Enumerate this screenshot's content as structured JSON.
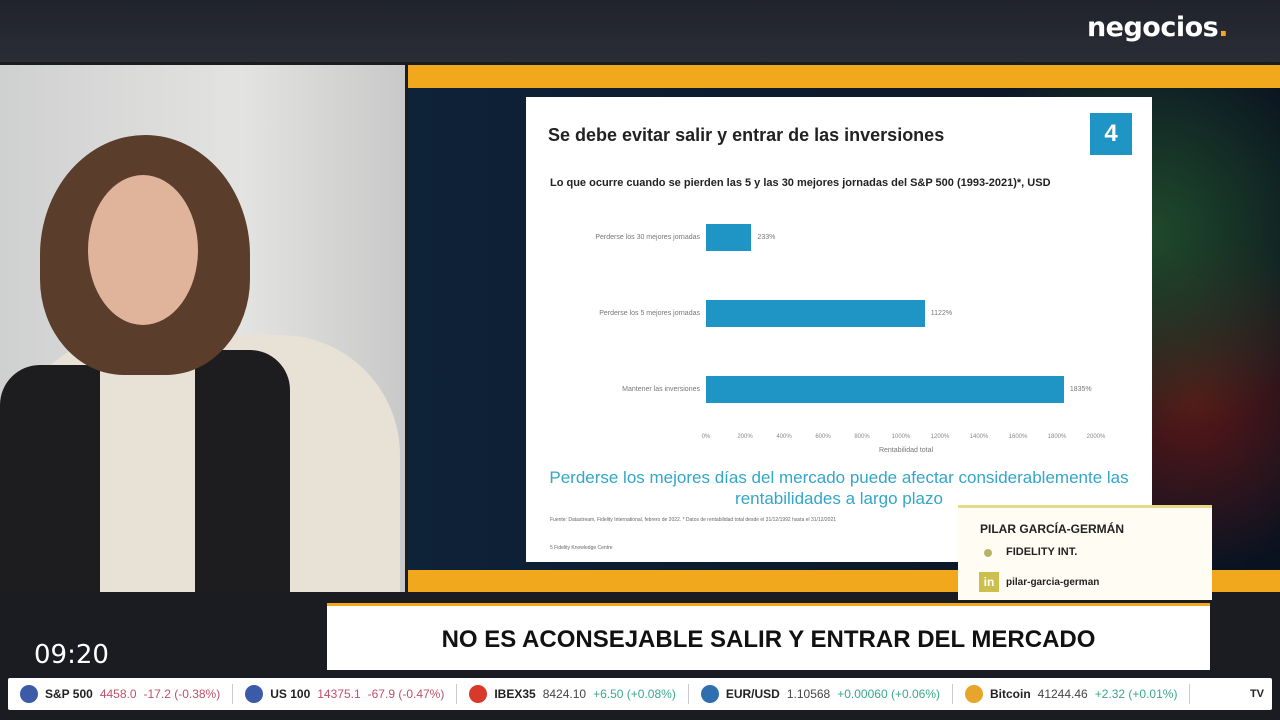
{
  "brand": {
    "logo": "negocios",
    "logo_dot": "."
  },
  "slide": {
    "title": "Se debe evitar salir y entrar de las inversiones",
    "number": "4",
    "subtitle": "Lo que ocurre cuando se pierden las 5 y las 30 mejores jornadas del S&P 500 (1993-2021)*, USD",
    "message": "Perderse los mejores días del mercado puede afectar considerablemente las rentabilidades a largo plazo",
    "source": "Fuente: Datastream, Fidelity International, febrero de 2022. * Datos de rentabilidad total desde el 31/12/1992 hasta el 31/12/2021",
    "footer": "5      Fidelity Knowledge Centre",
    "accent": "#1f95c6"
  },
  "chart_data": {
    "type": "bar",
    "orientation": "horizontal",
    "categories": [
      "Perderse los 30 mejores jornadas",
      "Perderse los 5 mejores jornadas",
      "Mantener las inversiones"
    ],
    "values": [
      233,
      1122,
      1835
    ],
    "value_labels": [
      "233%",
      "1122%",
      "1835%"
    ],
    "xlabel": "Rentabilidad total",
    "xlim": [
      0,
      2000
    ],
    "ticks": [
      "0%",
      "200%",
      "400%",
      "600%",
      "800%",
      "1000%",
      "1200%",
      "1400%",
      "1600%",
      "1800%",
      "2000%"
    ],
    "grid": false
  },
  "guest": {
    "name": "PILAR GARCÍA-GERMÁN",
    "company": "FIDELITY INT.",
    "linkedin_icon": "in",
    "linkedin": "pilar-garcia-german"
  },
  "headline": "NO ES ACONSEJABLE SALIR Y ENTRAR DEL MERCADO",
  "clock": "09:20",
  "ticker": [
    {
      "name": "S&P 500",
      "price": "4458.0",
      "change": "-17.2 (-0.38%)",
      "dir": "neg",
      "flag": "#3b5aa8"
    },
    {
      "name": "US 100",
      "price": "14375.1",
      "change": "-67.9 (-0.47%)",
      "dir": "neg",
      "flag": "#3b5aa8"
    },
    {
      "name": "IBEX35",
      "price": "8424.10",
      "change": "+6.50 (+0.08%)",
      "dir": "pos",
      "flag": "#d8392b"
    },
    {
      "name": "EUR/USD",
      "price": "1.10568",
      "change": "+0.00060 (+0.06%)",
      "dir": "pos",
      "flag": "#2f6fb0"
    },
    {
      "name": "Bitcoin",
      "price": "41244.46",
      "change": "+2.32 (+0.01%)",
      "dir": "pos",
      "flag": "#e7a52a"
    }
  ],
  "ticker_brand": "TV"
}
